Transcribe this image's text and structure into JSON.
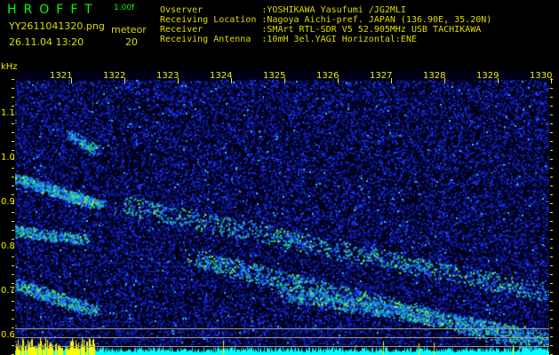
{
  "header": {
    "logo": "HROFFT",
    "version": "1.00f",
    "filename": "YY2611041320.png",
    "datetime": "26.11.04 13:20",
    "meteor_label": "meteor",
    "meteor_count": "20"
  },
  "info": [
    {
      "label": "Ovserver           ",
      "value": ":YOSHIKAWA Yasufumi /JG2MLI"
    },
    {
      "label": "Receiving Location ",
      "value": ":Nagoya Aichi-pref. JAPAN (136.90E, 35.20N)"
    },
    {
      "label": "Receiver           ",
      "value": ":SMArt RTL-SDR V5 52.905MHz USB TACHIKAWA"
    },
    {
      "label": "Receiving Antenna  ",
      "value": ":10mH 3el.YAGI Horizontal:ENE"
    }
  ],
  "chart_data": {
    "type": "heatmap",
    "ylabel": "kHz",
    "yticks": [
      "1.1",
      "1.0",
      "0.9",
      "0.8",
      "0.7",
      "0.6"
    ],
    "xticks": [
      "1321",
      "1322",
      "1323",
      "1324",
      "1325",
      "1326",
      "1327",
      "1328",
      "1329",
      "1330"
    ],
    "ylim": [
      0.56,
      1.2
    ],
    "colors": {
      "background": "#000020",
      "noise": "#1020e0",
      "echo": "#20ff80",
      "bar_meteor": "#ffff00",
      "bar_noise": "#00ffff"
    }
  }
}
